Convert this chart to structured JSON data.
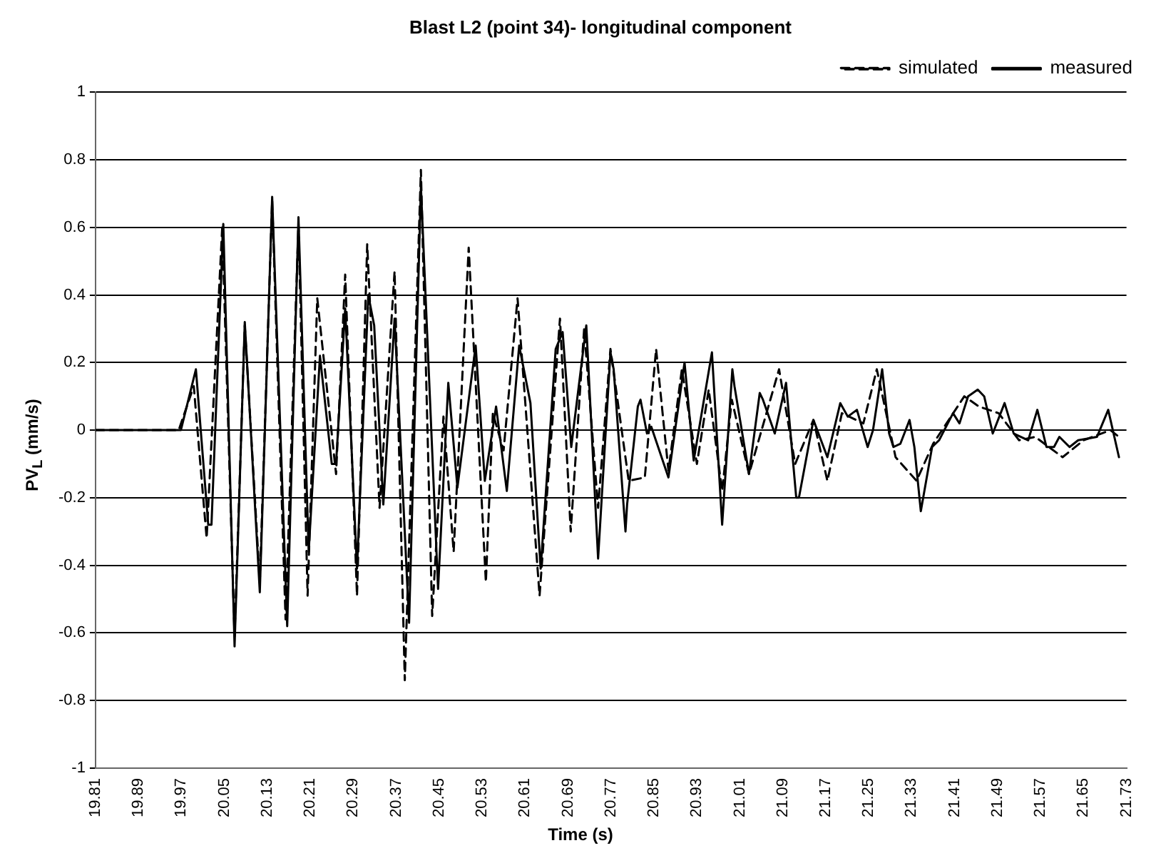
{
  "chart_data": {
    "type": "line",
    "title": "Blast L2 (point 34)- longitudinal component",
    "xlabel": "Time (s)",
    "ylabel": "PV$_{L}$ (mm/s)",
    "xlim": [
      19.81,
      21.73
    ],
    "ylim": [
      -1,
      1
    ],
    "xticks": [
      19.81,
      19.89,
      19.97,
      20.05,
      20.13,
      20.21,
      20.29,
      20.37,
      20.45,
      20.53,
      20.61,
      20.69,
      20.77,
      20.85,
      20.93,
      21.01,
      21.09,
      21.17,
      21.25,
      21.33,
      21.41,
      21.49,
      21.57,
      21.65,
      21.73
    ],
    "yticks": [
      -1,
      -0.8,
      -0.6,
      -0.4,
      -0.2,
      0,
      0.2,
      0.4,
      0.6,
      0.8,
      1
    ],
    "grid": "y",
    "legend": "top right",
    "marker": "none",
    "series": [
      {
        "name": "simulated",
        "color": "#000000",
        "line_style": "dashed",
        "x": [
          19.81,
          19.965,
          19.993,
          20.017,
          20.046,
          20.069,
          20.088,
          20.116,
          20.139,
          20.164,
          20.188,
          20.205,
          20.223,
          20.258,
          20.275,
          20.297,
          20.316,
          20.339,
          20.367,
          20.386,
          20.416,
          20.437,
          20.458,
          20.477,
          20.505,
          20.537,
          20.55,
          20.57,
          20.596,
          20.637,
          20.675,
          20.695,
          20.72,
          20.746,
          20.769,
          20.803,
          20.833,
          20.854,
          20.877,
          20.902,
          20.93,
          20.952,
          20.977,
          20.995,
          21.027,
          21.083,
          21.113,
          21.147,
          21.173,
          21.2,
          21.24,
          21.265,
          21.3,
          21.339,
          21.37,
          21.428,
          21.455,
          21.492,
          21.53,
          21.56,
          21.611,
          21.65,
          21.7,
          21.716
        ],
        "values": [
          0,
          0,
          0.13,
          -0.32,
          0.6,
          -0.61,
          0.31,
          -0.45,
          0.68,
          -0.56,
          0.61,
          -0.49,
          0.39,
          -0.13,
          0.46,
          -0.49,
          0.55,
          -0.23,
          0.47,
          -0.74,
          0.77,
          -0.55,
          0.04,
          -0.36,
          0.54,
          -0.45,
          0.05,
          -0.06,
          0.39,
          -0.49,
          0.33,
          -0.3,
          0.3,
          -0.23,
          0.24,
          -0.15,
          -0.14,
          0.24,
          -0.12,
          0.18,
          -0.1,
          0.12,
          -0.18,
          0.09,
          -0.13,
          0.18,
          -0.1,
          0.03,
          -0.15,
          0.05,
          0.02,
          0.18,
          -0.08,
          -0.15,
          -0.04,
          0.1,
          0.07,
          0.05,
          -0.03,
          -0.02,
          -0.08,
          -0.03,
          0,
          -0.02
        ]
      },
      {
        "name": "measured",
        "color": "#000000",
        "line_style": "solid",
        "x": [
          19.81,
          19.969,
          19.997,
          20.02,
          20.026,
          20.048,
          20.069,
          20.088,
          20.116,
          20.139,
          20.167,
          20.188,
          20.207,
          20.228,
          20.25,
          20.258,
          20.275,
          20.297,
          20.318,
          20.329,
          20.346,
          20.367,
          20.394,
          20.416,
          20.448,
          20.467,
          20.484,
          20.518,
          20.535,
          20.556,
          20.576,
          20.599,
          20.62,
          20.639,
          20.667,
          20.68,
          20.696,
          20.724,
          20.746,
          20.769,
          20.775,
          20.797,
          20.8,
          20.82,
          20.825,
          20.837,
          20.845,
          20.877,
          20.907,
          20.924,
          20.958,
          20.977,
          20.996,
          21.0,
          21.027,
          21.047,
          21.053,
          21.075,
          21.096,
          21.115,
          21.12,
          21.147,
          21.173,
          21.197,
          21.211,
          21.228,
          21.248,
          21.258,
          21.275,
          21.288,
          21.296,
          21.309,
          21.326,
          21.335,
          21.347,
          21.368,
          21.381,
          21.407,
          21.419,
          21.435,
          21.453,
          21.465,
          21.481,
          21.503,
          21.52,
          21.547,
          21.564,
          21.581,
          21.595,
          21.605,
          21.624,
          21.64,
          21.675,
          21.696,
          21.716
        ],
        "values": [
          0,
          0,
          0.18,
          -0.28,
          -0.28,
          0.61,
          -0.64,
          0.32,
          -0.48,
          0.69,
          -0.58,
          0.63,
          -0.36,
          0.22,
          -0.1,
          -0.1,
          0.36,
          -0.41,
          0.4,
          0.31,
          -0.22,
          0.33,
          -0.57,
          0.72,
          -0.47,
          0.14,
          -0.17,
          0.25,
          -0.15,
          0.07,
          -0.18,
          0.25,
          0.08,
          -0.41,
          0.24,
          0.29,
          -0.05,
          0.31,
          -0.38,
          0.23,
          0.18,
          -0.3,
          -0.22,
          0.07,
          0.09,
          -0.01,
          0.01,
          -0.14,
          0.2,
          -0.09,
          0.23,
          -0.28,
          0.18,
          0.13,
          -0.13,
          0.11,
          0.09,
          -0.01,
          0.14,
          -0.2,
          -0.2,
          0.03,
          -0.08,
          0.08,
          0.04,
          0.06,
          -0.05,
          0,
          0.18,
          -0.01,
          -0.05,
          -0.04,
          0.03,
          -0.05,
          -0.24,
          -0.05,
          -0.03,
          0.05,
          0.02,
          0.1,
          0.12,
          0.1,
          -0.01,
          0.08,
          -0.01,
          -0.03,
          0.06,
          -0.05,
          -0.05,
          -0.02,
          -0.05,
          -0.03,
          -0.02,
          0.06,
          -0.08
        ]
      }
    ]
  }
}
